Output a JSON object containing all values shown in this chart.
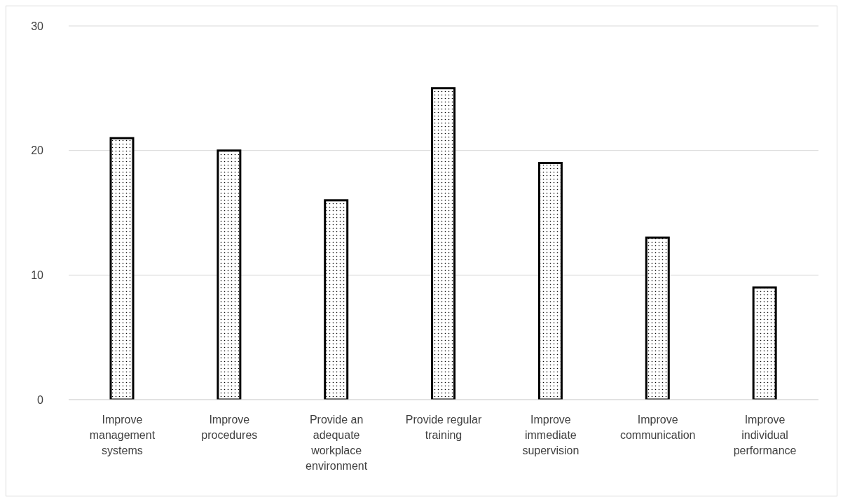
{
  "chart_data": {
    "type": "bar",
    "categories": [
      "Improve management systems",
      "Improve procedures",
      "Provide an adequate workplace environment",
      "Provide regular training",
      "Improve immediate supervision",
      "Improve communication",
      "Improve individual performance"
    ],
    "values": [
      21,
      20,
      16,
      25,
      19,
      13,
      9
    ],
    "color": "#000000",
    "ylim": [
      0,
      30
    ],
    "yticks": [
      0,
      10,
      20,
      30
    ],
    "grid": "y",
    "legend": false
  }
}
